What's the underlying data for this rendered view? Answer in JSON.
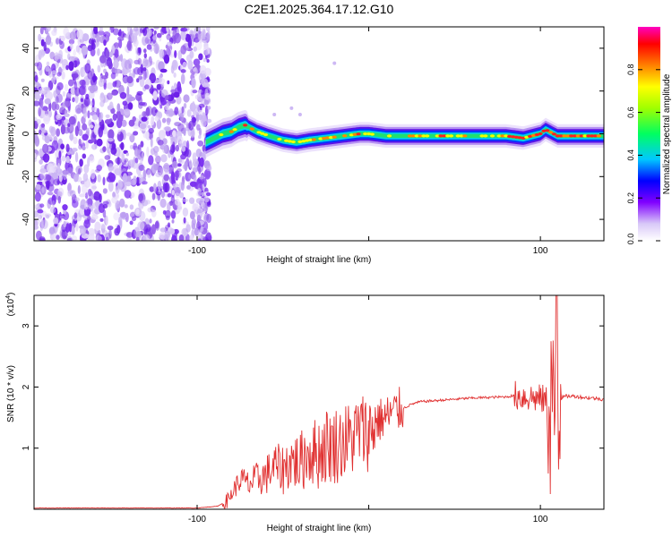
{
  "title": "C2E1.2025.364.17.12.G10",
  "chart_data": [
    {
      "type": "heatmap",
      "title": "C2E1.2025.364.17.12.G10",
      "xlabel": "Height of straight line (km)",
      "ylabel": "Frequency (Hz)",
      "xlim": [
        -195,
        137
      ],
      "ylim": [
        -50,
        50
      ],
      "xticks": [
        -100,
        0,
        100
      ],
      "xtick_labels": [
        "-100",
        "",
        "100"
      ],
      "yticks": [
        40,
        20,
        0,
        -20,
        -40
      ],
      "ytick_labels": [
        "40",
        "20",
        "0",
        "-20",
        "-40"
      ],
      "colorbar": {
        "label": "Normalized spectral amplitude",
        "range": [
          0,
          1
        ],
        "ticks": [
          0.0,
          0.2,
          0.4,
          0.6,
          0.8
        ],
        "tick_labels": [
          "0.0",
          "0.2",
          "0.4",
          "0.6",
          "0.8"
        ]
      },
      "noise_region_x": [
        -195,
        -93
      ],
      "ridge": {
        "x": [
          -95,
          -90,
          -85,
          -80,
          -76,
          -72,
          -65,
          -58,
          -50,
          -42,
          -35,
          -25,
          -15,
          -5,
          0,
          10,
          30,
          60,
          80,
          90,
          95,
          100,
          103,
          110,
          137
        ],
        "y": [
          -4,
          -2,
          0,
          1,
          3,
          4,
          1,
          -1,
          -3,
          -4,
          -3,
          -2,
          -1,
          0,
          0,
          -1,
          -1,
          -1,
          -1,
          -2,
          -1,
          0,
          2,
          -1,
          -1
        ]
      }
    },
    {
      "type": "line",
      "xlabel": "Height of straight line (km)",
      "ylabel": "SNR (10 * v/v)",
      "y_scale_label": "(x10",
      "y_scale_exp": "4",
      "y_scale_close": ")",
      "xlim": [
        -195,
        137
      ],
      "ylim": [
        0,
        3.5
      ],
      "xticks": [
        -100,
        0,
        100
      ],
      "xtick_labels": [
        "-100",
        "",
        "100"
      ],
      "yticks": [
        1,
        2,
        3
      ],
      "ytick_labels": [
        "1",
        "2",
        "3"
      ],
      "series": [
        {
          "name": "SNR",
          "color": "#e03030",
          "x": [
            -195,
            -100,
            -88,
            -82,
            -78,
            -74,
            -70,
            -65,
            -60,
            -55,
            -50,
            -45,
            -40,
            -35,
            -30,
            -25,
            -20,
            -15,
            -10,
            -5,
            0,
            5,
            10,
            15,
            20,
            25,
            30,
            40,
            50,
            60,
            70,
            80,
            85,
            88,
            92,
            95,
            100,
            104,
            106,
            108,
            110,
            115,
            120,
            125,
            130,
            137
          ],
          "y": [
            0.02,
            0.02,
            0.05,
            0.15,
            0.35,
            0.5,
            0.4,
            0.5,
            0.55,
            0.7,
            0.65,
            0.8,
            0.75,
            0.95,
            0.9,
            1.05,
            1.05,
            1.1,
            1.15,
            1.3,
            1.25,
            1.45,
            1.5,
            1.6,
            1.65,
            1.72,
            1.76,
            1.78,
            1.8,
            1.82,
            1.83,
            1.84,
            1.86,
            1.85,
            1.84,
            1.83,
            1.8,
            1.78,
            1.7,
            1.6,
            1.8,
            1.85,
            1.85,
            1.83,
            1.82,
            1.8
          ]
        }
      ]
    }
  ]
}
